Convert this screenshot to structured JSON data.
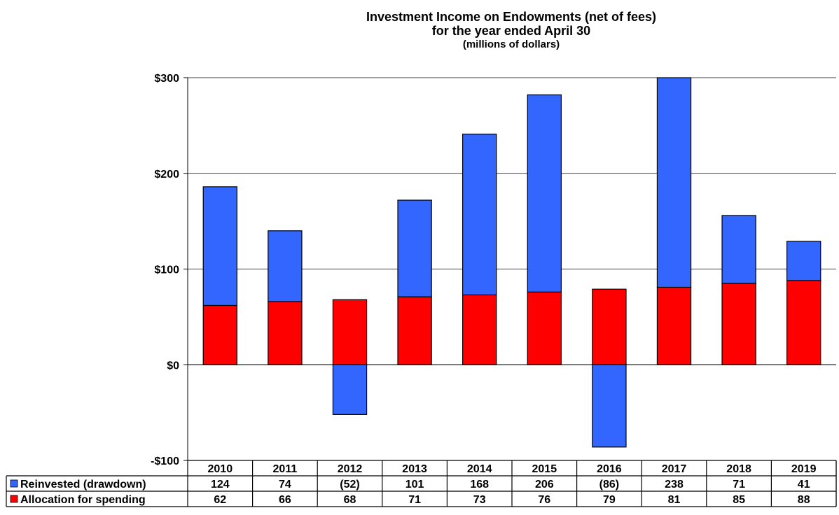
{
  "chart_data": {
    "type": "bar",
    "stacked": true,
    "title": "Investment Income on Endowments (net of fees)",
    "subtitle": "for the year ended April 30",
    "units_note": "(millions of dollars)",
    "categories": [
      "2010",
      "2011",
      "2012",
      "2013",
      "2014",
      "2015",
      "2016",
      "2017",
      "2018",
      "2019"
    ],
    "series": [
      {
        "name": "Allocation for spending",
        "color": "#ff0000",
        "values": [
          62,
          66,
          68,
          71,
          73,
          76,
          79,
          81,
          85,
          88
        ],
        "labels": [
          "62",
          "66",
          "68",
          "71",
          "73",
          "76",
          "79",
          "81",
          "85",
          "88"
        ]
      },
      {
        "name": "Reinvested (drawdown)",
        "color": "#3366ff",
        "values": [
          124,
          74,
          -52,
          101,
          168,
          206,
          -86,
          238,
          71,
          41
        ],
        "labels": [
          "124",
          "74",
          "(52)",
          "101",
          "168",
          "206",
          "(86)",
          "238",
          "71",
          "41"
        ]
      }
    ],
    "ylim": [
      -100,
      300
    ],
    "yticks": [
      -100,
      0,
      100,
      200,
      300
    ],
    "ytick_labels": [
      "-$100",
      "$0",
      "$100",
      "$200",
      "$300"
    ],
    "grid": true,
    "legend_placement": "data-table-left"
  }
}
